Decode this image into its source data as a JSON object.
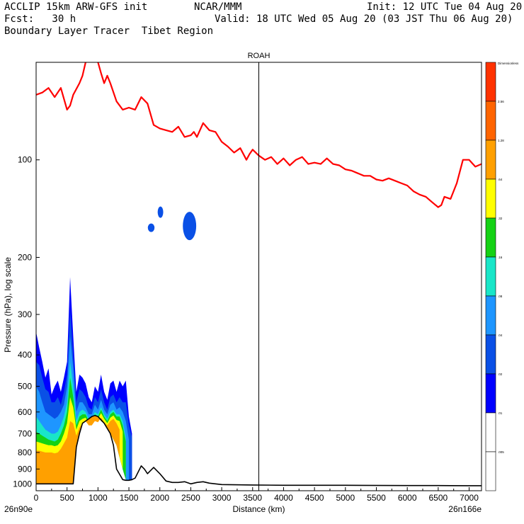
{
  "header": {
    "line1_left": "ACCLIP 15km ARW-GFS init",
    "line1_mid": "NCAR/MMM",
    "line1_right": "Init: 12 UTC Tue 04 Aug 20",
    "line2_left": "Fcst:   30 h",
    "line2_right": "Valid: 18 UTC Wed 05 Aug 20 (03 JST Thu 06 Aug 20)",
    "line3_left": "Boundary Layer Tracer  Tibet Region"
  },
  "chart_data": {
    "type": "area",
    "title": "ROAH",
    "xlabel": "Distance (km)",
    "ylabel": "Pressure (hPa), log scale",
    "xlim": [
      0,
      7200
    ],
    "ylim": [
      1050,
      50
    ],
    "y_scale": "log",
    "x_ticks": [
      0,
      500,
      1000,
      1500,
      2000,
      2500,
      3000,
      3500,
      4000,
      4500,
      5000,
      5500,
      6000,
      6500,
      7000
    ],
    "y_ticks": [
      100,
      200,
      300,
      400,
      500,
      600,
      700,
      800,
      900,
      1000
    ],
    "x_end_labels": {
      "left": "26n90e",
      "right": "26n166e"
    },
    "marker_line_x": 3600,
    "colorbar": {
      "title": "Dimensionless",
      "levels": [
        ".005",
        ".01",
        ".02",
        ".04",
        ".08",
        ".16",
        ".32",
        ".64",
        "1.28",
        "2.56"
      ],
      "colors": [
        "#ffffff",
        "#ffffff",
        "#0000ff",
        "#0a50e6",
        "#1e96ff",
        "#19e6c8",
        "#14d214",
        "#ffff00",
        "#ffa000",
        "#ff6400",
        "#ff3200"
      ]
    },
    "series": [
      {
        "name": "tropopause",
        "color": "#ff0000",
        "x": [
          0,
          100,
          200,
          300,
          400,
          500,
          550,
          600,
          700,
          750,
          800,
          900,
          1000,
          1050,
          1100,
          1150,
          1200,
          1300,
          1400,
          1500,
          1600,
          1700,
          1800,
          1900,
          2000,
          2100,
          2200,
          2300,
          2400,
          2500,
          2550,
          2600,
          2700,
          2800,
          2900,
          3000,
          3100,
          3200,
          3300,
          3400,
          3450,
          3500,
          3600,
          3700,
          3800,
          3900,
          4000,
          4100,
          4200,
          4300,
          4400,
          4500,
          4600,
          4700,
          4800,
          4900,
          5000,
          5100,
          5200,
          5300,
          5400,
          5500,
          5600,
          5700,
          5800,
          5900,
          6000,
          6100,
          6200,
          6300,
          6400,
          6500,
          6550,
          6600,
          6700,
          6800,
          6900,
          7000,
          7100,
          7200
        ],
        "y": [
          63,
          62,
          60,
          64,
          60,
          70,
          68,
          63,
          58,
          55,
          50,
          49,
          50,
          54,
          58,
          55,
          58,
          66,
          70,
          69,
          70,
          64,
          67,
          78,
          80,
          81,
          82,
          79,
          85,
          84,
          82,
          85,
          77,
          81,
          82,
          88,
          91,
          95,
          92,
          100,
          96,
          93,
          97,
          100,
          98,
          103,
          99,
          104,
          100,
          98,
          103,
          102,
          103,
          99,
          103,
          104,
          107,
          108,
          110,
          112,
          112,
          115,
          116,
          114,
          116,
          118,
          120,
          125,
          128,
          130,
          135,
          140,
          138,
          130,
          132,
          118,
          100,
          100,
          105,
          103
        ]
      },
      {
        "name": "terrain",
        "color": "#000000",
        "x": [
          0,
          100,
          200,
          300,
          400,
          500,
          600,
          650,
          700,
          750,
          800,
          850,
          900,
          950,
          1000,
          1100,
          1200,
          1250,
          1300,
          1400,
          1450,
          1500,
          1550,
          1600,
          1700,
          1750,
          1800,
          1900,
          2000,
          2100,
          2200,
          2300,
          2400,
          2500,
          2600,
          2700,
          2800,
          2900,
          3000,
          3500,
          4000,
          5000,
          6000,
          6500,
          7000,
          7200
        ],
        "y": [
          1000,
          1000,
          1000,
          1000,
          1000,
          1000,
          1000,
          770,
          700,
          650,
          640,
          630,
          620,
          615,
          620,
          650,
          700,
          760,
          900,
          970,
          975,
          975,
          970,
          960,
          880,
          900,
          930,
          890,
          930,
          980,
          990,
          990,
          985,
          1000,
          990,
          985,
          995,
          1000,
          1005,
          1008,
          1010,
          1010,
          1012,
          1012,
          1013,
          1013
        ]
      }
    ],
    "tracer_bands": [
      {
        "level": ".02",
        "color": "#0000ff",
        "x": [
          0,
          50,
          100,
          150,
          200,
          250,
          300,
          350,
          400,
          450,
          500,
          550,
          600,
          650,
          700,
          750,
          800,
          850,
          900,
          950,
          1000,
          1050,
          1100,
          1150,
          1200,
          1250,
          1300,
          1350,
          1400,
          1450,
          1500,
          1550
        ],
        "top": [
          340,
          380,
          420,
          470,
          440,
          530,
          500,
          480,
          520,
          470,
          420,
          230,
          350,
          520,
          460,
          470,
          490,
          540,
          560,
          500,
          520,
          460,
          520,
          550,
          490,
          480,
          520,
          480,
          500,
          480,
          620,
          700
        ],
        "bottom": [
          1000,
          1000,
          1000,
          1000,
          1000,
          1000,
          1000,
          1000,
          1000,
          1000,
          1000,
          1000,
          1000,
          770,
          700,
          650,
          640,
          630,
          620,
          615,
          620,
          640,
          650,
          675,
          700,
          730,
          760,
          830,
          900,
          970,
          975,
          975
        ]
      },
      {
        "level": ".04",
        "color": "#0a50e6",
        "x": [
          0,
          50,
          100,
          150,
          200,
          250,
          300,
          350,
          400,
          450,
          500,
          550,
          600,
          650,
          700,
          750,
          800,
          850,
          900,
          950,
          1000,
          1050,
          1100,
          1150,
          1200,
          1250,
          1300,
          1350,
          1400,
          1450,
          1500,
          1550
        ],
        "top": [
          420,
          430,
          470,
          510,
          520,
          560,
          560,
          540,
          570,
          520,
          460,
          290,
          400,
          560,
          510,
          520,
          540,
          580,
          590,
          540,
          560,
          510,
          560,
          590,
          540,
          530,
          560,
          540,
          560,
          560,
          660,
          720
        ],
        "bottom": [
          1000,
          1000,
          1000,
          1000,
          1000,
          1000,
          1000,
          1000,
          1000,
          1000,
          1000,
          1000,
          1000,
          770,
          700,
          650,
          640,
          630,
          620,
          615,
          620,
          640,
          650,
          675,
          700,
          730,
          760,
          830,
          900,
          970,
          975,
          975
        ]
      },
      {
        "level": ".08",
        "color": "#1e96ff",
        "x": [
          0,
          50,
          100,
          150,
          200,
          250,
          300,
          350,
          400,
          450,
          500,
          550,
          600,
          650,
          700,
          750,
          800,
          850,
          900,
          950,
          1000,
          1050,
          1100,
          1150,
          1200,
          1250,
          1300,
          1350,
          1400,
          1450,
          1500
        ],
        "top": [
          500,
          520,
          560,
          600,
          610,
          620,
          630,
          620,
          600,
          570,
          500,
          350,
          440,
          600,
          560,
          560,
          580,
          610,
          610,
          570,
          590,
          550,
          590,
          610,
          570,
          560,
          590,
          580,
          600,
          640,
          730
        ],
        "bottom": [
          1000,
          1000,
          1000,
          1000,
          1000,
          1000,
          1000,
          1000,
          1000,
          1000,
          1000,
          1000,
          1000,
          770,
          700,
          650,
          640,
          630,
          620,
          615,
          620,
          640,
          650,
          675,
          700,
          730,
          760,
          830,
          900,
          970,
          975
        ]
      },
      {
        "level": ".16",
        "color": "#19e6c8",
        "x": [
          0,
          50,
          100,
          150,
          200,
          250,
          300,
          350,
          400,
          450,
          500,
          550,
          600,
          650,
          700,
          750,
          800,
          850,
          900,
          950,
          1000,
          1050,
          1100,
          1150,
          1200,
          1250,
          1300,
          1350,
          1400,
          1450
        ],
        "top": [
          620,
          640,
          660,
          680,
          690,
          700,
          700,
          690,
          660,
          620,
          560,
          420,
          500,
          640,
          600,
          590,
          600,
          630,
          630,
          600,
          610,
          580,
          610,
          630,
          600,
          590,
          610,
          610,
          640,
          720
        ],
        "bottom": [
          1000,
          1000,
          1000,
          1000,
          1000,
          1000,
          1000,
          1000,
          1000,
          1000,
          1000,
          1000,
          1000,
          770,
          700,
          650,
          640,
          630,
          620,
          615,
          620,
          640,
          650,
          675,
          700,
          730,
          760,
          830,
          900,
          970
        ]
      },
      {
        "level": ".32",
        "color": "#14d214",
        "x": [
          0,
          50,
          100,
          150,
          200,
          250,
          300,
          350,
          400,
          450,
          500,
          550,
          600,
          650,
          700,
          750,
          800,
          850,
          900,
          950,
          1000,
          1050,
          1100,
          1150,
          1200,
          1250,
          1300,
          1350,
          1400,
          1450
        ],
        "top": [
          690,
          700,
          710,
          720,
          730,
          735,
          740,
          730,
          700,
          660,
          600,
          470,
          540,
          660,
          620,
          610,
          610,
          640,
          640,
          610,
          620,
          590,
          620,
          640,
          610,
          600,
          620,
          620,
          660,
          740
        ],
        "bottom": [
          1000,
          1000,
          1000,
          1000,
          1000,
          1000,
          1000,
          1000,
          1000,
          1000,
          1000,
          1000,
          1000,
          770,
          700,
          650,
          640,
          630,
          620,
          615,
          620,
          640,
          650,
          675,
          700,
          730,
          760,
          830,
          900,
          970
        ]
      },
      {
        "level": ".64",
        "color": "#ffff00",
        "x": [
          0,
          50,
          100,
          150,
          200,
          250,
          300,
          350,
          400,
          450,
          500,
          550,
          600,
          650,
          700,
          750,
          800,
          850,
          900,
          950,
          1000,
          1050,
          1100,
          1150,
          1200,
          1250,
          1300,
          1350,
          1400
        ],
        "top": [
          740,
          745,
          750,
          755,
          760,
          760,
          765,
          760,
          740,
          700,
          650,
          540,
          580,
          680,
          640,
          630,
          625,
          650,
          650,
          625,
          630,
          605,
          630,
          650,
          625,
          615,
          635,
          640,
          690
        ],
        "bottom": [
          1000,
          1000,
          1000,
          1000,
          1000,
          1000,
          1000,
          1000,
          1000,
          1000,
          1000,
          1000,
          1000,
          770,
          700,
          650,
          640,
          630,
          620,
          615,
          620,
          640,
          650,
          675,
          700,
          730,
          760,
          830,
          900
        ]
      },
      {
        "level": "1.28",
        "color": "#ffa000",
        "x": [
          0,
          50,
          100,
          150,
          200,
          250,
          300,
          350,
          400,
          450,
          500,
          550,
          600,
          650,
          700,
          750,
          800,
          850,
          900,
          950,
          1000,
          1050,
          1100,
          1150,
          1200,
          1250,
          1300,
          1350
        ],
        "top": [
          790,
          790,
          795,
          800,
          800,
          800,
          805,
          800,
          780,
          750,
          720,
          640,
          650,
          710,
          670,
          650,
          640,
          660,
          660,
          640,
          645,
          625,
          645,
          660,
          640,
          630,
          650,
          680
        ],
        "bottom": [
          1000,
          1000,
          1000,
          1000,
          1000,
          1000,
          1000,
          1000,
          1000,
          1000,
          1000,
          1000,
          1000,
          770,
          700,
          650,
          640,
          630,
          620,
          615,
          620,
          640,
          650,
          675,
          700,
          730,
          760,
          830
        ]
      }
    ],
    "blobs": [
      {
        "x": 1860,
        "p": 162,
        "rx_km": 30,
        "ry_px": 6
      },
      {
        "x": 2010,
        "p": 145,
        "rx_km": 25,
        "ry_px": 8
      },
      {
        "x": 2480,
        "p": 160,
        "rx_km": 60,
        "ry_px": 20
      }
    ]
  }
}
